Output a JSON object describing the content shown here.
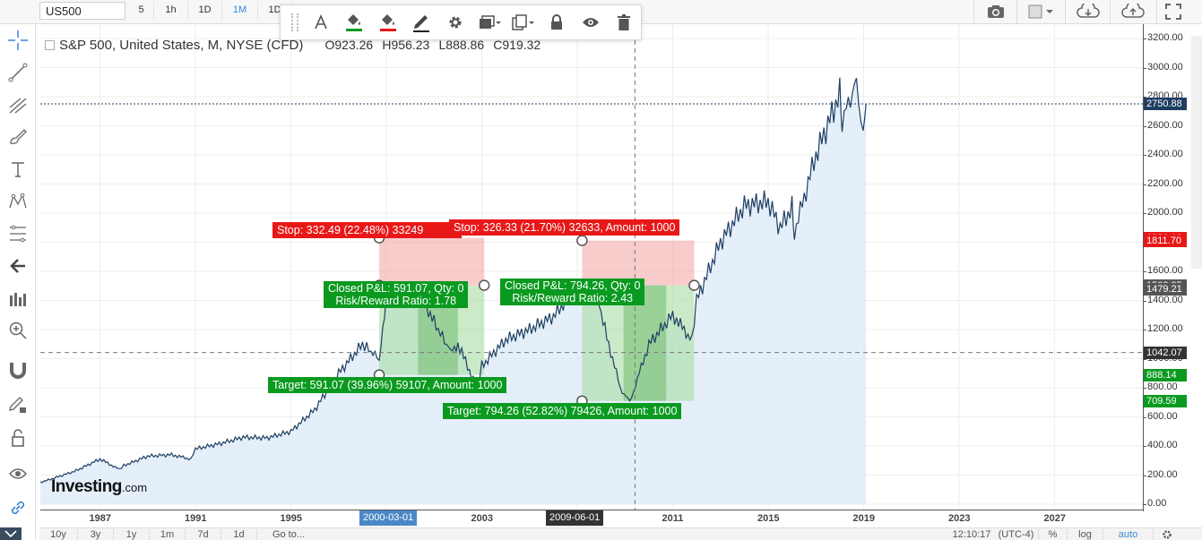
{
  "toolbar": {
    "symbol": "US500",
    "timeframes": [
      {
        "label": "5",
        "active": false
      },
      {
        "label": "1h",
        "active": false
      },
      {
        "label": "1D",
        "active": false
      },
      {
        "label": "1M",
        "active": true
      },
      {
        "label": "1D",
        "active": false
      }
    ]
  },
  "chart": {
    "title": "S&P 500, United States, M, NYSE (CFD)",
    "ohlc": {
      "o": "O923.26",
      "h": "H956.23",
      "l": "L888.86",
      "c": "C919.32"
    },
    "price_axis_labels": [
      "3200.00",
      "3000.00",
      "2800.00",
      "2600.00",
      "2400.00",
      "2200.00",
      "2000.00",
      "1800.00",
      "1600.00",
      "1400.00",
      "1200.00",
      "1000.00",
      "800.00",
      "600.00",
      "400.00",
      "200.00",
      "0.00"
    ],
    "time_axis_labels": [
      "1987",
      "1991",
      "1995",
      "1999",
      "2003",
      "2007",
      "2011",
      "2015",
      "2019",
      "2023",
      "2027"
    ],
    "price_tags": [
      {
        "value": "2750.88",
        "color": "#1e3d63"
      },
      {
        "value": "1830.18",
        "color": "#e81818"
      },
      {
        "value": "1811.70",
        "color": "#e81818"
      },
      {
        "value": "1503.85",
        "color": "#555555"
      },
      {
        "value": "1479.21",
        "color": "#555555"
      },
      {
        "value": "1042.07",
        "color": "#333333"
      },
      {
        "value": "888.14",
        "color": "#0a9a20"
      },
      {
        "value": "709.59",
        "color": "#0a9a20"
      }
    ],
    "time_tags": [
      {
        "value": "2000-03-01",
        "color": "#4a88c7"
      },
      {
        "value": "2009-06-01",
        "color": "#333333"
      }
    ],
    "positions": [
      {
        "stop_label": "Stop: 332.49 (22.48%) 33249",
        "pnl_label": "Closed P&L: 591.07, Qty: 0",
        "rr_label": "Risk/Reward Ratio: 1.78",
        "target_label": "Target: 591.07 (39.96%) 59107, Amount: 1000"
      },
      {
        "stop_label": "Stop: 326.33 (21.70%) 32633, Amount: 1000",
        "pnl_label": "Closed P&L: 794.26, Qty: 0",
        "rr_label": "Risk/Reward Ratio: 2.43",
        "target_label": "Target: 794.26 (52.82%) 79426, Amount: 1000"
      }
    ],
    "watermark": "Investing",
    "watermark_suffix": ".com"
  },
  "bottom": {
    "ranges": [
      "10y",
      "3y",
      "1y",
      "1m",
      "7d",
      "1d",
      "Go to..."
    ],
    "time": "12:10:17",
    "tz": "(UTC-4)",
    "percent": "%",
    "log": "log",
    "auto": "auto"
  },
  "chart_data": {
    "type": "area",
    "x": [
      1984.5,
      1985,
      1986,
      1987,
      1987.8,
      1988,
      1989,
      1990,
      1990.8,
      1991,
      1992,
      1993,
      1994,
      1995,
      1996,
      1997,
      1998,
      1998.7,
      1999,
      2000,
      2000.2,
      2001,
      2001.7,
      2002,
      2002.8,
      2003,
      2004,
      2005,
      2006,
      2007,
      2007.8,
      2008,
      2008.8,
      2009.2,
      2010,
      2011,
      2011.8,
      2012,
      2013,
      2014,
      2015,
      2015.5,
      2016,
      2016.1,
      2017,
      2018,
      2018.1,
      2018.7,
      2018.98,
      2019.1
    ],
    "y": [
      150,
      175,
      230,
      310,
      240,
      265,
      330,
      340,
      310,
      380,
      415,
      460,
      455,
      500,
      650,
      900,
      1100,
      1000,
      1400,
      1450,
      1527,
      1250,
      1050,
      1100,
      800,
      950,
      1130,
      1200,
      1290,
      1490,
      1500,
      1300,
      800,
      700,
      1100,
      1300,
      1130,
      1400,
      1800,
      2050,
      2080,
      1900,
      2040,
      1870,
      2400,
      2820,
      2640,
      2900,
      2510,
      2750
    ],
    "xlim": [
      1984.5,
      2030.7
    ],
    "ylim": [
      -50,
      3300
    ],
    "price_line": 2750.88,
    "crosshair": {
      "x": "2009-06-01",
      "y": 1042.07
    }
  }
}
